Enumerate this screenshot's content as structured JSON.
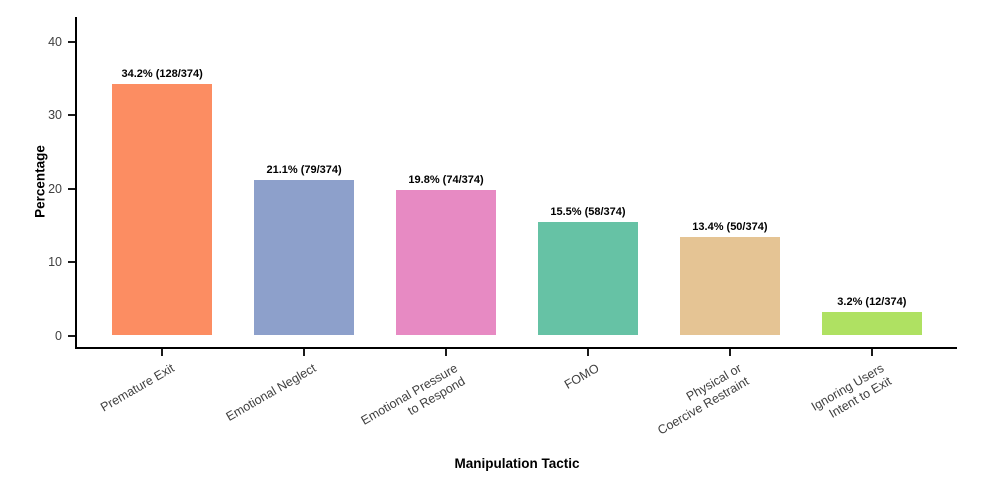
{
  "chart_data": {
    "type": "bar",
    "title": "",
    "xlabel": "Manipulation Tactic",
    "ylabel": "Percentage",
    "ylim": [
      0,
      43.3
    ],
    "yticks": [
      0,
      10,
      20,
      30,
      40
    ],
    "categories": [
      [
        "Premature Exit"
      ],
      [
        "Emotional Neglect"
      ],
      [
        "Emotional Pressure",
        "to Respond"
      ],
      [
        "FOMO"
      ],
      [
        "Physical or",
        "Coercive Restraint"
      ],
      [
        "Ignoring Users",
        "Intent to Exit"
      ]
    ],
    "values": [
      34.2,
      21.1,
      19.8,
      15.5,
      13.4,
      3.2
    ],
    "counts": [
      "128/374",
      "79/374",
      "74/374",
      "58/374",
      "50/374",
      "12/374"
    ],
    "bar_labels": [
      "34.2% (128/374)",
      "21.1% (79/374)",
      "19.8% (74/374)",
      "15.5% (58/374)",
      "13.4% (50/374)",
      "3.2% (12/374)"
    ],
    "colors": [
      "#FC8D62",
      "#8DA0CB",
      "#E78AC3",
      "#66C2A5",
      "#E5C494",
      "#AFE162"
    ],
    "axis_color": "#000000",
    "tick_label_color": "#404040",
    "grid": false,
    "legend": false
  }
}
